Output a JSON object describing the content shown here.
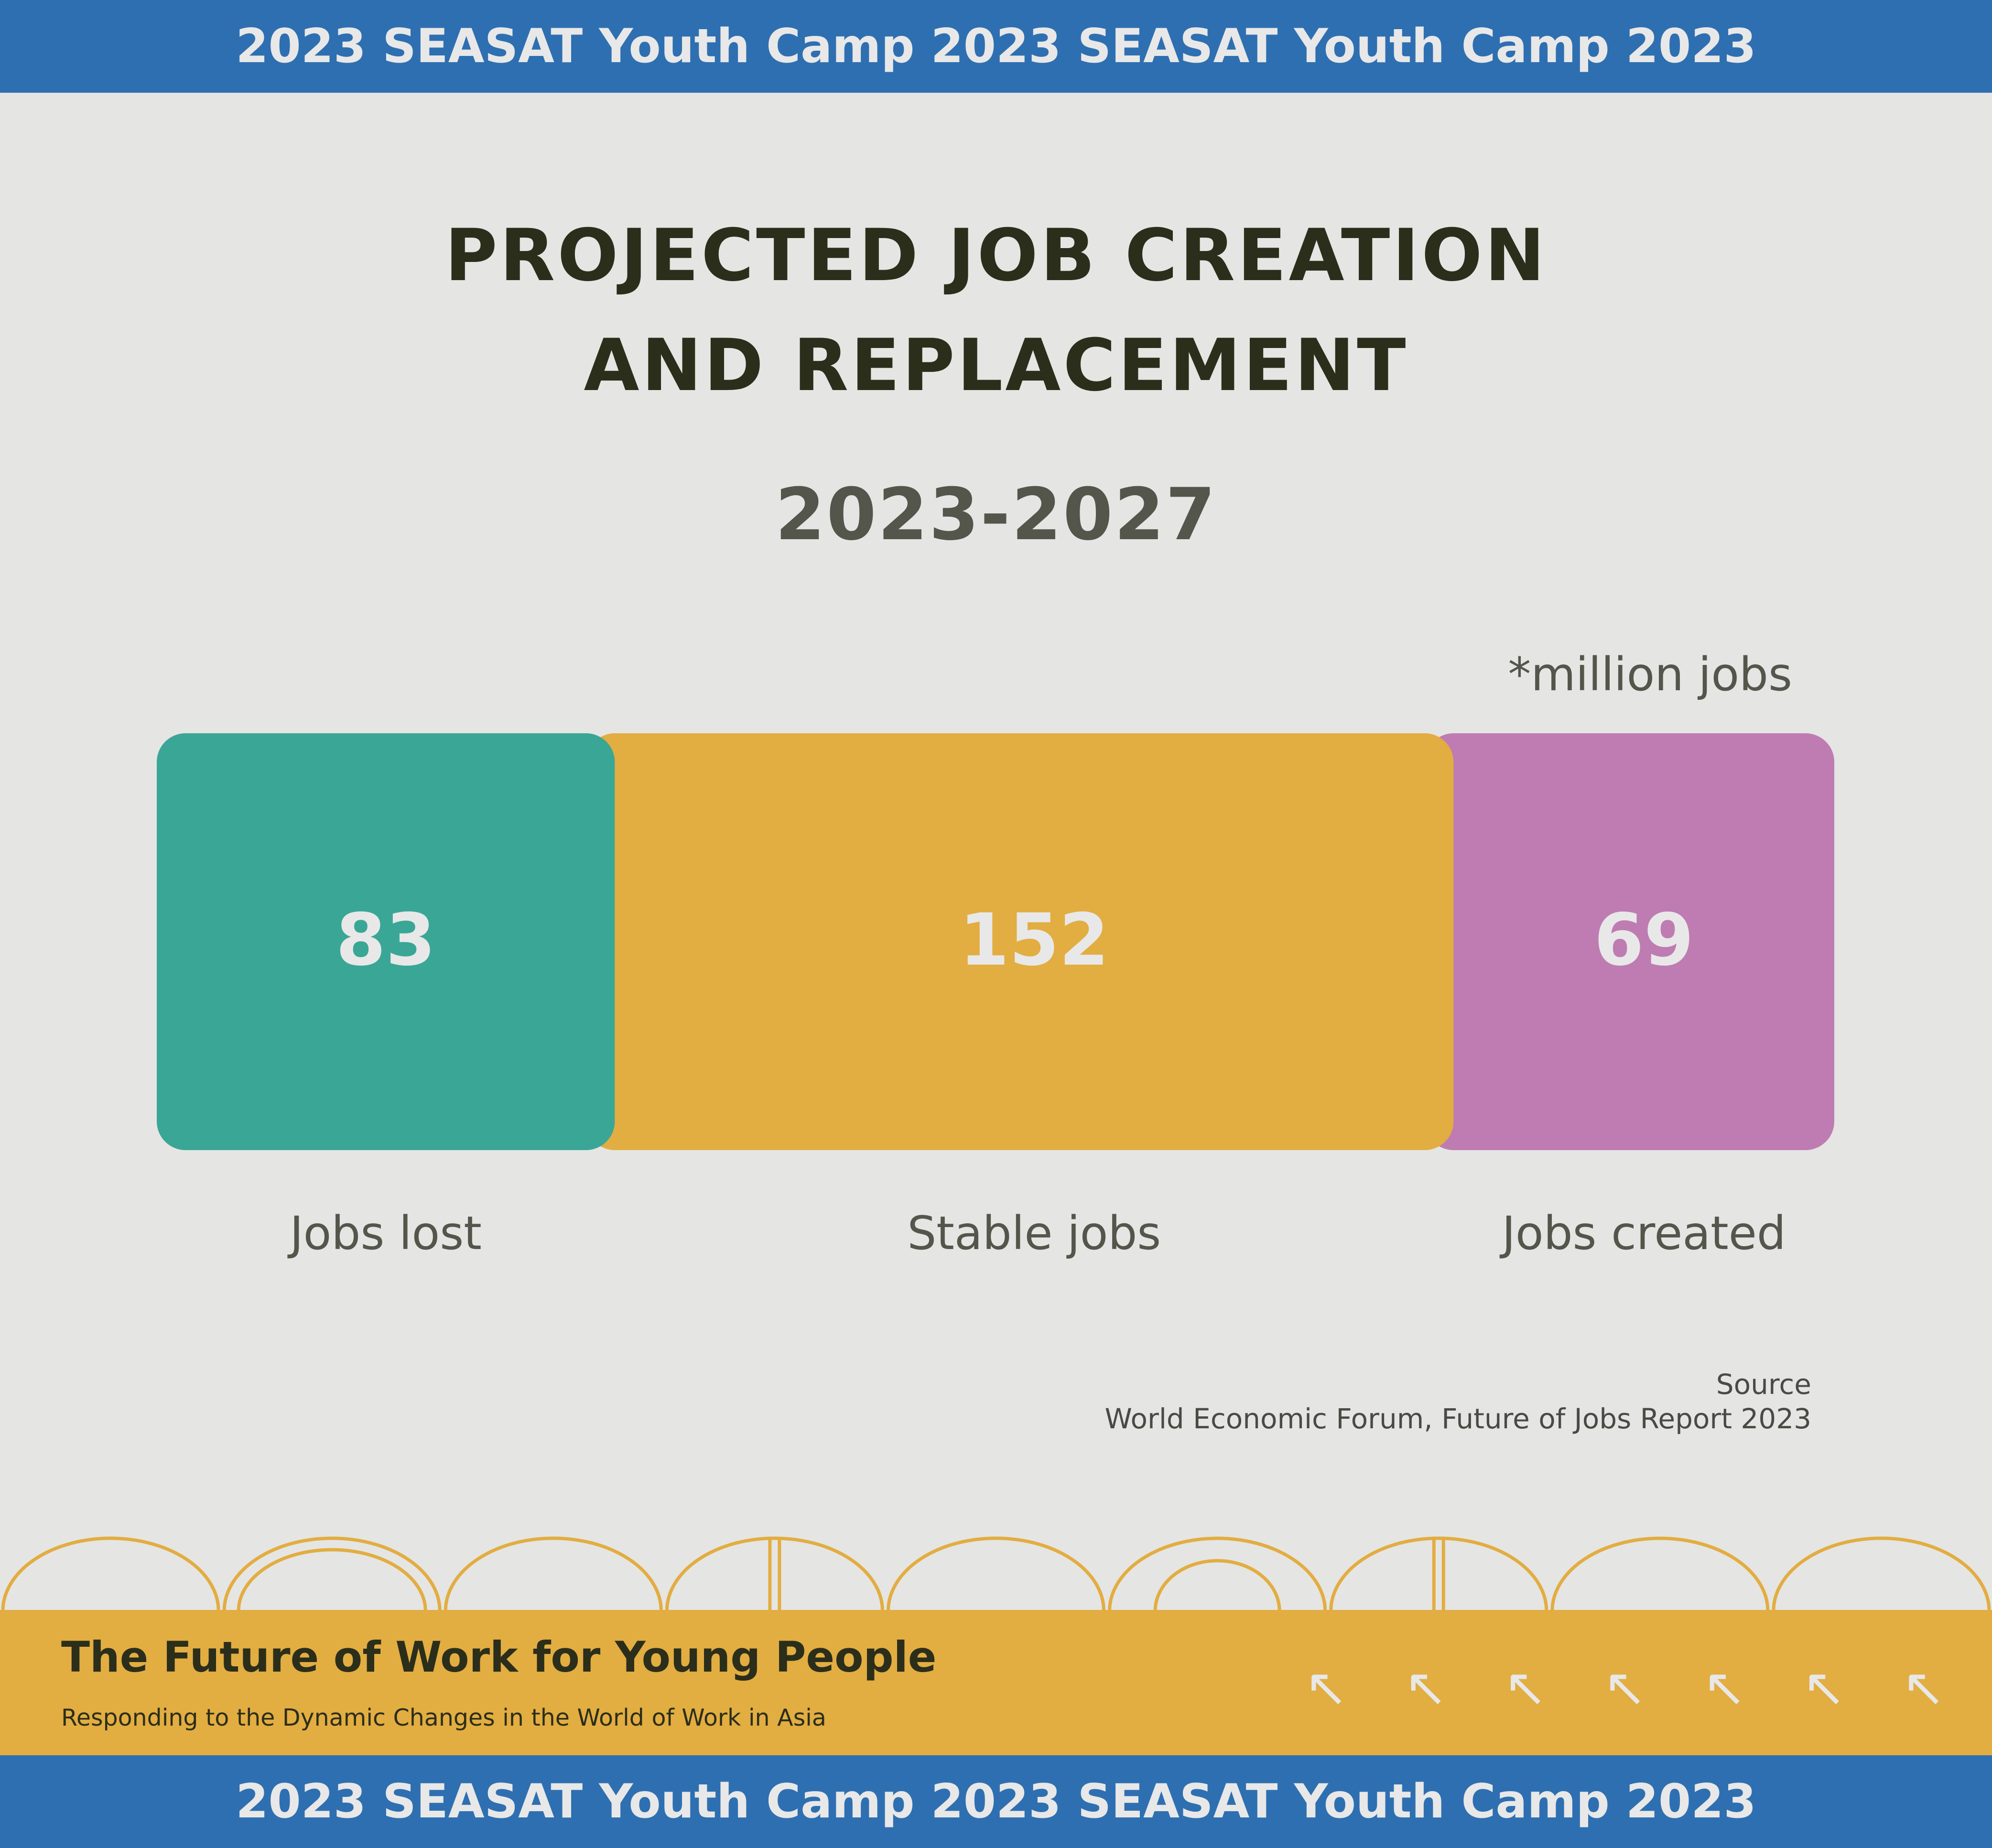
{
  "banner": {
    "top_text": "2023 SEASAT Youth Camp 2023 SEASAT Youth Camp 2023",
    "bottom_text": "2023 SEASAT Youth Camp 2023 SEASAT Youth Camp 2023"
  },
  "chart_data": {
    "type": "bar",
    "orientation": "horizontal-stacked",
    "title_line1": "PROJECTED JOB CREATION",
    "title_line2": "AND REPLACEMENT",
    "subtitle": "2023-2027",
    "unit_note": "*million jobs",
    "categories": [
      "Jobs lost",
      "Stable jobs",
      "Jobs created"
    ],
    "values": [
      83,
      152,
      69
    ],
    "value_labels": [
      "83",
      "152",
      "69"
    ],
    "colors": [
      "#3aa696",
      "#e2ad41",
      "#be7cb2"
    ],
    "legend": "below-bars"
  },
  "source": {
    "label": "Source",
    "text": "World Economic Forum, Future of Jobs Report 2023"
  },
  "footer": {
    "title": "The Future of Work for Young People",
    "subtitle": "Responding to the Dynamic Changes in the World of Work in Asia",
    "arrow_icon": "arrow-up-left-icon",
    "arrow_count": 7,
    "arch_color": "#e2ad41",
    "band_color": "#e2ad41"
  },
  "colors": {
    "background": "#e5e5e3",
    "banner": "#2e6fb1",
    "title_text": "#2b2e1a",
    "muted_text": "#54554b"
  }
}
